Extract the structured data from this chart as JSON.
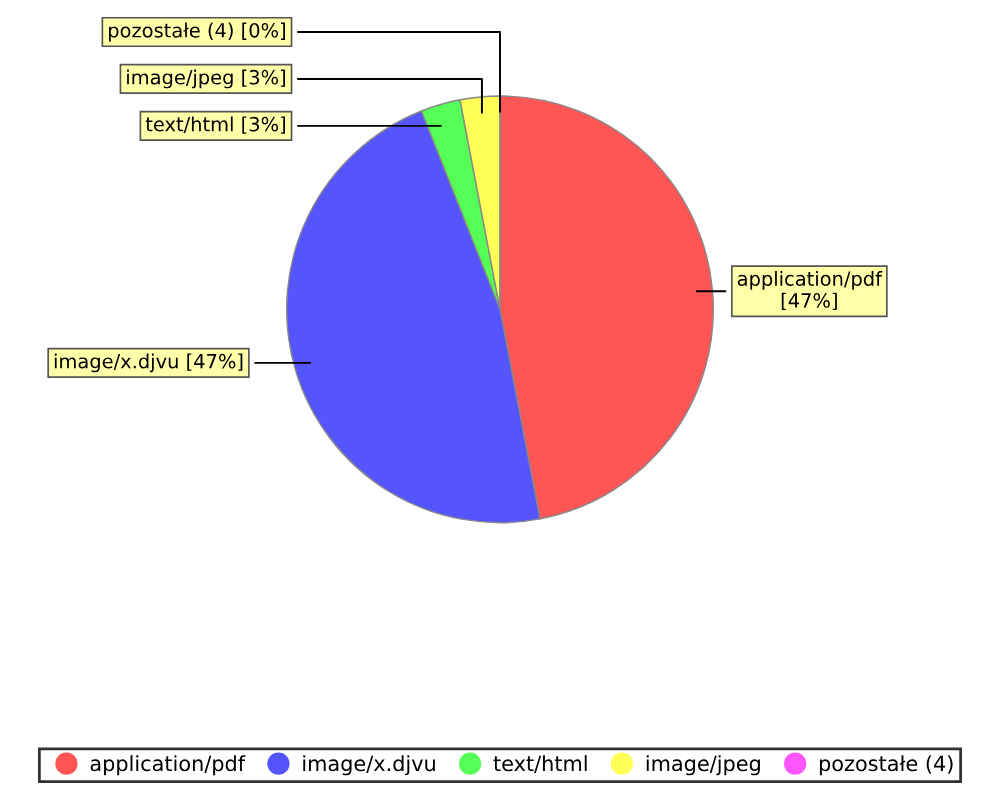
{
  "chart_data": {
    "type": "pie",
    "categories": [
      "application/pdf",
      "image/x.djvu",
      "text/html",
      "image/jpeg",
      "pozostałe (4)"
    ],
    "values": [
      47,
      47,
      3,
      3,
      0
    ],
    "colors": [
      "#ff5555",
      "#5555ff",
      "#55ff55",
      "#ffff55",
      "#ff55ff"
    ],
    "value_labels": [
      "application/pdf\n[47%]",
      "image/x.djvu [47%]",
      "text/html [3%]",
      "image/jpeg [3%]",
      "pozostałe (4) [0%]"
    ],
    "legend": "bottom"
  }
}
